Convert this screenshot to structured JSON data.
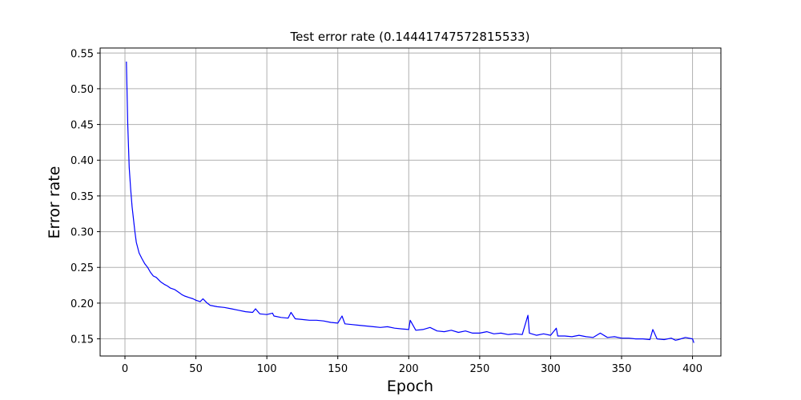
{
  "chart_data": {
    "type": "line",
    "title": "Test error rate (0.14441747572815533)",
    "xlabel": "Epoch",
    "ylabel": "Error rate",
    "xlim": [
      -17.5,
      420
    ],
    "ylim": [
      0.126,
      0.557
    ],
    "xticks": [
      0,
      50,
      100,
      150,
      200,
      250,
      300,
      350,
      400
    ],
    "yticks": [
      0.15,
      0.2,
      0.25,
      0.3,
      0.35,
      0.4,
      0.45,
      0.5,
      0.55
    ],
    "grid": true,
    "color": "#0000ff",
    "series": [
      {
        "x": [
          1,
          2,
          3,
          4,
          5,
          6,
          7,
          8,
          10,
          12,
          14,
          16,
          18,
          20,
          22,
          25,
          28,
          30,
          32,
          35,
          38,
          40,
          42,
          45,
          48,
          50,
          53,
          55,
          58,
          60,
          65,
          70,
          75,
          80,
          85,
          90,
          92,
          95,
          100,
          104,
          105,
          110,
          115,
          117,
          120,
          125,
          130,
          135,
          140,
          145,
          150,
          153,
          155,
          160,
          165,
          170,
          175,
          180,
          185,
          190,
          195,
          200,
          201,
          205,
          210,
          215,
          220,
          225,
          230,
          235,
          240,
          245,
          250,
          255,
          260,
          265,
          270,
          275,
          280,
          284,
          285,
          290,
          295,
          300,
          304,
          305,
          310,
          315,
          320,
          325,
          330,
          335,
          340,
          345,
          350,
          355,
          360,
          365,
          370,
          372,
          375,
          380,
          385,
          388,
          390,
          395,
          400,
          401
        ],
        "y": [
          0.538,
          0.45,
          0.39,
          0.36,
          0.335,
          0.318,
          0.3,
          0.285,
          0.27,
          0.262,
          0.255,
          0.25,
          0.243,
          0.238,
          0.236,
          0.23,
          0.226,
          0.224,
          0.221,
          0.219,
          0.215,
          0.212,
          0.21,
          0.208,
          0.206,
          0.204,
          0.202,
          0.206,
          0.2,
          0.197,
          0.195,
          0.194,
          0.192,
          0.19,
          0.188,
          0.187,
          0.192,
          0.185,
          0.184,
          0.186,
          0.182,
          0.18,
          0.179,
          0.187,
          0.178,
          0.177,
          0.176,
          0.176,
          0.175,
          0.173,
          0.172,
          0.182,
          0.171,
          0.17,
          0.169,
          0.168,
          0.167,
          0.166,
          0.167,
          0.165,
          0.164,
          0.163,
          0.176,
          0.162,
          0.163,
          0.166,
          0.161,
          0.16,
          0.162,
          0.159,
          0.161,
          0.158,
          0.158,
          0.16,
          0.157,
          0.158,
          0.156,
          0.157,
          0.156,
          0.183,
          0.158,
          0.155,
          0.157,
          0.155,
          0.165,
          0.154,
          0.154,
          0.153,
          0.155,
          0.153,
          0.152,
          0.158,
          0.152,
          0.153,
          0.151,
          0.151,
          0.15,
          0.15,
          0.149,
          0.163,
          0.15,
          0.149,
          0.151,
          0.148,
          0.149,
          0.152,
          0.15,
          0.1444
        ]
      }
    ]
  }
}
